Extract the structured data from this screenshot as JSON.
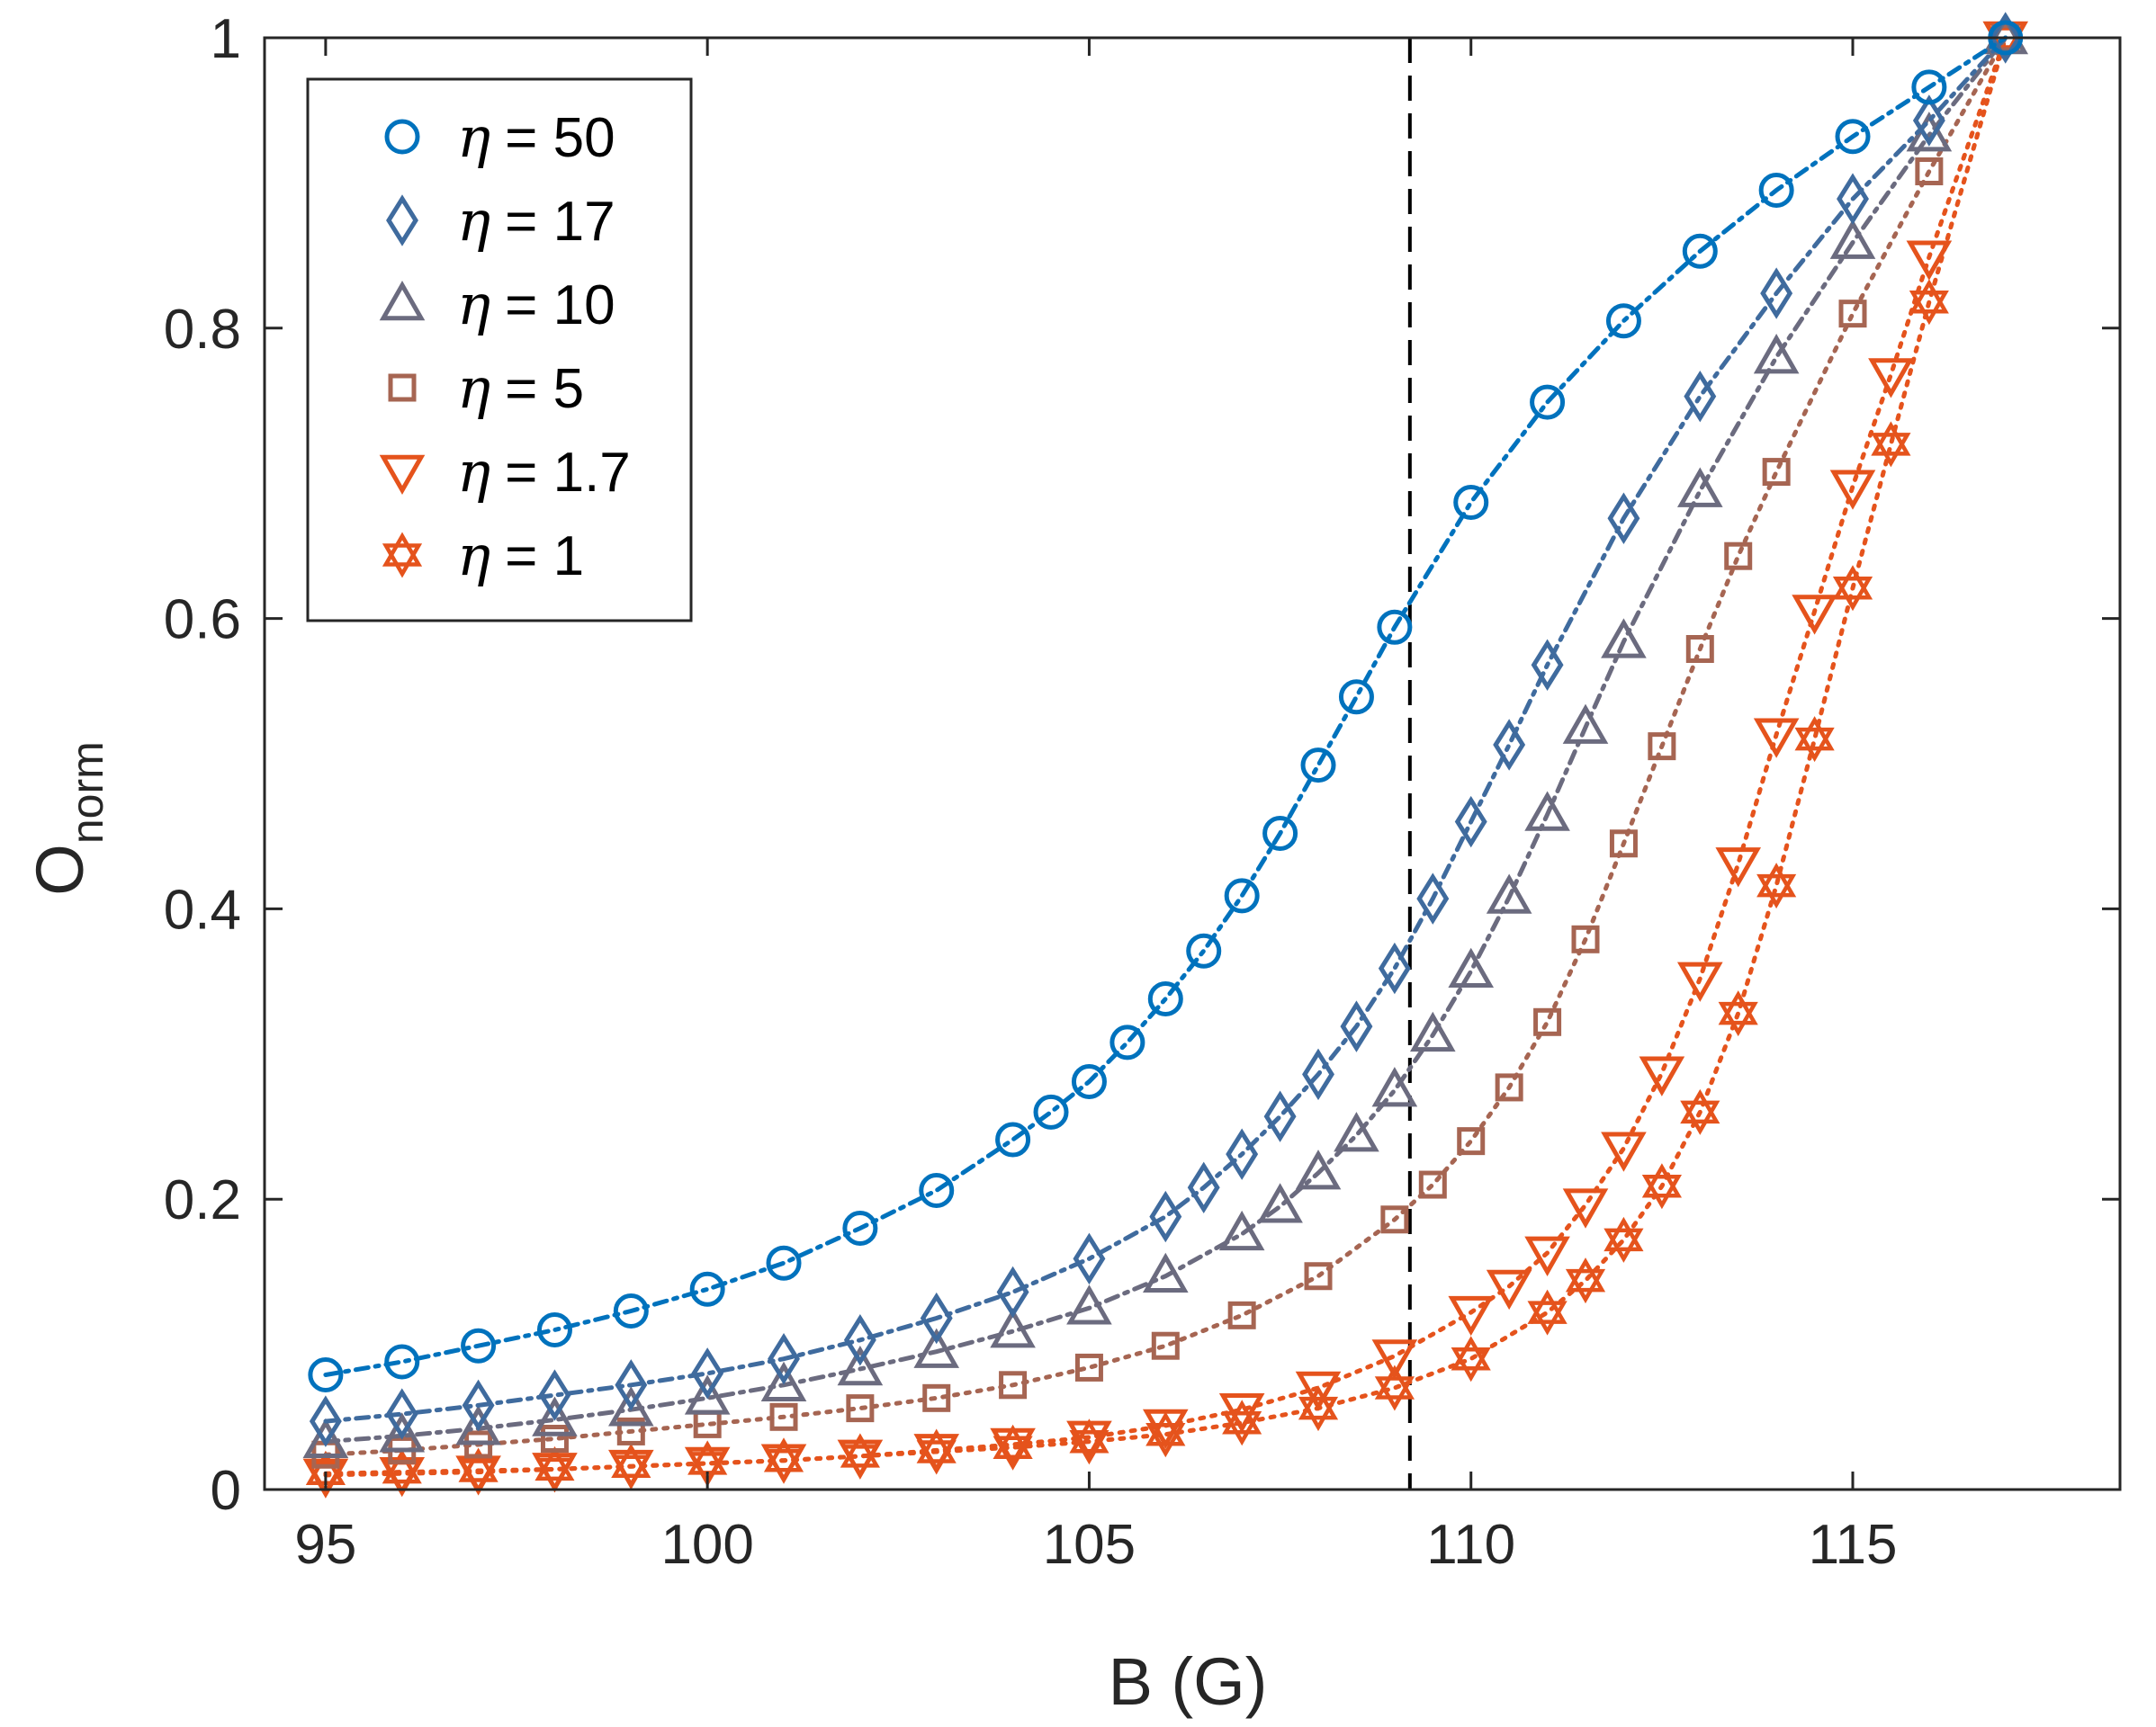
{
  "chart_data": {
    "type": "line",
    "xlabel": "B (G)",
    "ylabel_main": "O",
    "ylabel_sub": "norm",
    "xlim": [
      94.2,
      118.5
    ],
    "ylim": [
      0,
      1
    ],
    "xticks": [
      95,
      100,
      105,
      110,
      115
    ],
    "yticks": [
      0,
      0.2,
      0.4,
      0.6,
      0.8,
      1
    ],
    "ytick_labels": [
      "0",
      "0.2",
      "0.4",
      "0.6",
      "0.8",
      "1"
    ],
    "grid": false,
    "legend_position": "top-left",
    "reference_line": {
      "x": 109.2,
      "style": "dashed",
      "color": "#000000"
    },
    "series": [
      {
        "name": "50",
        "marker": "circle",
        "color": "#0072BD",
        "x": [
          95,
          96,
          97,
          98,
          99,
          100,
          101,
          102,
          103,
          104,
          104.5,
          105,
          105.5,
          106,
          106.5,
          107,
          107.5,
          108,
          108.5,
          109,
          110,
          111,
          112,
          113,
          114,
          115,
          116,
          117
        ],
        "y": [
          0.079,
          0.088,
          0.099,
          0.11,
          0.123,
          0.138,
          0.156,
          0.18,
          0.206,
          0.241,
          0.26,
          0.281,
          0.308,
          0.338,
          0.371,
          0.409,
          0.452,
          0.499,
          0.546,
          0.594,
          0.68,
          0.749,
          0.805,
          0.853,
          0.895,
          0.932,
          0.966,
          1.0
        ]
      },
      {
        "name": "17",
        "marker": "diamond",
        "color": "#3F6B9E",
        "x": [
          95,
          96,
          97,
          98,
          99,
          100,
          101,
          102,
          103,
          104,
          105,
          106,
          106.5,
          107,
          107.5,
          108,
          108.5,
          109,
          109.5,
          110,
          110.5,
          111,
          112,
          113,
          114,
          115,
          116,
          117
        ],
        "y": [
          0.047,
          0.052,
          0.058,
          0.065,
          0.072,
          0.08,
          0.09,
          0.103,
          0.118,
          0.136,
          0.159,
          0.188,
          0.208,
          0.231,
          0.257,
          0.286,
          0.319,
          0.359,
          0.407,
          0.46,
          0.513,
          0.568,
          0.669,
          0.753,
          0.824,
          0.889,
          0.943,
          1.0
        ]
      },
      {
        "name": "10",
        "marker": "triangle-up",
        "color": "#6B6B7F",
        "x": [
          95,
          96,
          97,
          98,
          99,
          100,
          101,
          102,
          103,
          104,
          105,
          106,
          107,
          107.5,
          108,
          108.5,
          109,
          109.5,
          110,
          110.5,
          111,
          111.5,
          112,
          113,
          114,
          115,
          116,
          117
        ],
        "y": [
          0.033,
          0.037,
          0.042,
          0.048,
          0.055,
          0.063,
          0.072,
          0.083,
          0.095,
          0.109,
          0.125,
          0.147,
          0.176,
          0.195,
          0.218,
          0.244,
          0.275,
          0.313,
          0.357,
          0.408,
          0.465,
          0.525,
          0.584,
          0.688,
          0.78,
          0.859,
          0.933,
          1.0
        ]
      },
      {
        "name": "5",
        "marker": "square",
        "color": "#A66552",
        "x": [
          95,
          96,
          97,
          98,
          99,
          100,
          101,
          102,
          103,
          104,
          105,
          106,
          107,
          108,
          109,
          109.5,
          110,
          110.5,
          111,
          111.5,
          112,
          112.5,
          113,
          113.5,
          114,
          115,
          116,
          117
        ],
        "y": [
          0.024,
          0.027,
          0.031,
          0.035,
          0.04,
          0.045,
          0.05,
          0.056,
          0.063,
          0.072,
          0.084,
          0.099,
          0.12,
          0.147,
          0.186,
          0.21,
          0.24,
          0.277,
          0.322,
          0.379,
          0.445,
          0.512,
          0.579,
          0.643,
          0.701,
          0.81,
          0.908,
          1.0
        ]
      },
      {
        "name": "1.7",
        "marker": "triangle-down",
        "color": "#E5531C",
        "x": [
          95,
          96,
          97,
          98,
          99,
          100,
          101,
          102,
          103,
          104,
          105,
          106,
          107,
          108,
          109,
          110,
          110.5,
          111,
          111.5,
          112,
          112.5,
          113,
          113.5,
          114,
          114.5,
          115,
          115.5,
          116,
          117
        ],
        "y": [
          0.01,
          0.011,
          0.012,
          0.014,
          0.016,
          0.018,
          0.02,
          0.023,
          0.027,
          0.031,
          0.036,
          0.044,
          0.055,
          0.07,
          0.092,
          0.122,
          0.14,
          0.163,
          0.196,
          0.235,
          0.287,
          0.352,
          0.431,
          0.52,
          0.605,
          0.691,
          0.768,
          0.849,
          1.0
        ]
      },
      {
        "name": "1",
        "marker": "hexagram",
        "color": "#E5531C",
        "x": [
          95,
          96,
          97,
          98,
          99,
          100,
          101,
          102,
          103,
          104,
          105,
          106,
          107,
          108,
          109,
          110,
          111,
          111.5,
          112,
          112.5,
          113,
          113.5,
          114,
          114.5,
          115,
          115.5,
          116,
          117
        ],
        "y": [
          0.011,
          0.012,
          0.013,
          0.014,
          0.016,
          0.018,
          0.02,
          0.023,
          0.026,
          0.029,
          0.033,
          0.038,
          0.046,
          0.056,
          0.07,
          0.09,
          0.122,
          0.144,
          0.172,
          0.209,
          0.26,
          0.328,
          0.416,
          0.517,
          0.621,
          0.72,
          0.818,
          1.0
        ]
      }
    ]
  },
  "legend": {
    "symbol": "η",
    "equals": "="
  },
  "colors": {
    "axis": "#262626",
    "background": "#ffffff"
  }
}
